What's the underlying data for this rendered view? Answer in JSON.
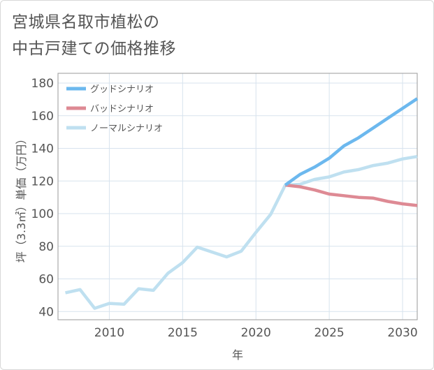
{
  "title_line1": "宮城県名取市植松の",
  "title_line2": "中古戸建ての価格推移",
  "chart_data": {
    "type": "line",
    "title": "宮城県名取市植松の中古戸建ての価格推移",
    "xlabel": "年",
    "ylabel": "坪（3.3㎡）単価（万円）",
    "xlim": [
      2006.5,
      2031
    ],
    "ylim": [
      35,
      186
    ],
    "x_ticks": [
      2010,
      2015,
      2020,
      2025,
      2030
    ],
    "y_ticks": [
      40,
      60,
      80,
      100,
      120,
      140,
      160,
      180
    ],
    "grid": true,
    "legend_position": "top-left",
    "series": [
      {
        "name": "グッドシナリオ",
        "color": "#6cb8ee",
        "x": [
          2022,
          2023,
          2024,
          2025,
          2026,
          2027,
          2028,
          2029,
          2030,
          2031
        ],
        "values": [
          117.5,
          124,
          128.5,
          134,
          141.5,
          146.5,
          152.5,
          158.5,
          164.5,
          170.5
        ]
      },
      {
        "name": "バッドシナリオ",
        "color": "#de8a94",
        "x": [
          2022,
          2023,
          2024,
          2025,
          2026,
          2027,
          2028,
          2029,
          2030,
          2031
        ],
        "values": [
          117.5,
          116.5,
          114.5,
          112,
          111,
          110,
          109.5,
          107.5,
          106,
          105
        ]
      },
      {
        "name": "ノーマルシナリオ",
        "color": "#bfe0f0",
        "x": [
          2007,
          2008,
          2009,
          2010,
          2011,
          2012,
          2013,
          2014,
          2015,
          2016,
          2017,
          2018,
          2019,
          2020,
          2021,
          2022,
          2023,
          2024,
          2025,
          2026,
          2027,
          2028,
          2029,
          2030,
          2031
        ],
        "values": [
          51.5,
          53.5,
          42,
          45,
          44.5,
          54,
          53,
          63.5,
          70,
          79.5,
          76.5,
          73.5,
          77,
          88.5,
          99.5,
          117.5,
          118,
          121,
          122.5,
          125.5,
          127,
          129.5,
          131,
          133.5,
          135
        ]
      }
    ]
  }
}
